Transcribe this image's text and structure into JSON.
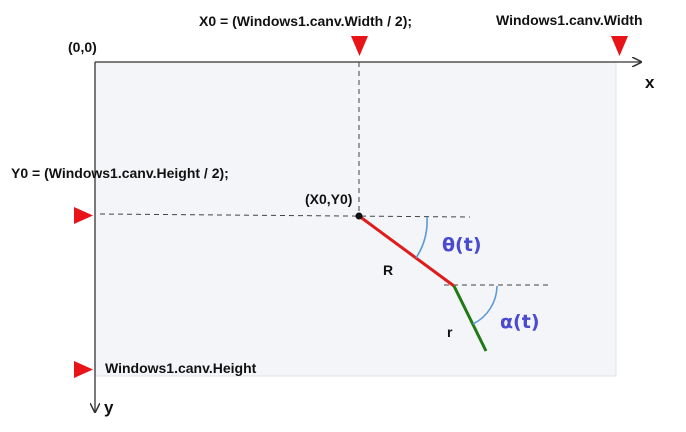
{
  "labels": {
    "origin": "(0,0)",
    "x0_formula": "X0 = (Windows1.canv.Width / 2);",
    "canvas_width": "Windows1.canv.Width",
    "y0_formula": "Y0 = (Windows1.canv.Height / 2);",
    "center_point": "(X0,Y0)",
    "canvas_height": "Windows1.canv.Height",
    "axis_x": "x",
    "axis_y": "y",
    "rod_big": "R",
    "rod_small": "r",
    "angle_theta": "θ(t)",
    "angle_alpha": "α(t)"
  },
  "colors": {
    "canvas_fill": "#f4f5f8",
    "canvas_border": "#e2e3e8",
    "marker": "#e8141a",
    "rod_R": "#e01b1b",
    "rod_r": "#1e7a12",
    "angle_arc": "#5b9bd5",
    "angle_text": "#4a4ad0",
    "dashed": "#444444",
    "axis": "#333333"
  },
  "icons": {
    "marker": "triangle-marker",
    "pivot": "dot"
  }
}
